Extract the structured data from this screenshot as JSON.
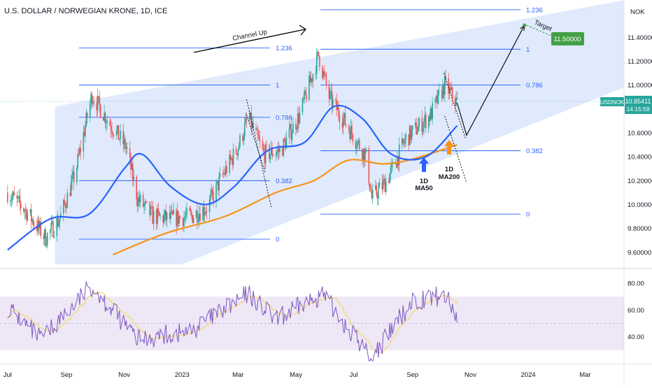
{
  "header": {
    "symbol_title": "U.S. DOLLAR / NORWEGIAN KRONE, 1D, ICE"
  },
  "price_axis": {
    "currency": "NOK",
    "ticks": [
      "11.40000",
      "11.20000",
      "11.00000",
      "10.80000",
      "10.60000",
      "10.40000",
      "10.20000",
      "10.00000",
      "9.80000",
      "9.60000"
    ],
    "last_symbol": "USDNOK",
    "last_price": "10.85411",
    "countdown": "14:15:59",
    "target_label": "11.50000"
  },
  "rsi_axis": {
    "ticks": [
      "80.00",
      "60.00",
      "40.00"
    ]
  },
  "time_axis": {
    "labels": [
      "Jul",
      "Sep",
      "Nov",
      "2023",
      "Mar",
      "May",
      "Jul",
      "Sep",
      "Nov",
      "2024",
      "Mar"
    ]
  },
  "annotations": {
    "channel_label": "Channel Up",
    "target_text": "Target",
    "ma50_line1": "1D",
    "ma50_line2": "MA50",
    "ma200_line1": "1D",
    "ma200_line2": "MA200"
  },
  "fib_sets": [
    {
      "levels": [
        {
          "label": "1.236",
          "value": 11.31
        },
        {
          "label": "1",
          "value": 11.0
        },
        {
          "label": "0.786",
          "value": 10.73
        },
        {
          "label": "0.382",
          "value": 10.2
        },
        {
          "label": "0",
          "value": 9.71
        }
      ]
    },
    {
      "levels": [
        {
          "label": "1.236",
          "value": 11.63
        },
        {
          "label": "1",
          "value": 11.3
        },
        {
          "label": "0.786",
          "value": 11.0
        },
        {
          "label": "0.382",
          "value": 10.45
        },
        {
          "label": "0",
          "value": 9.92
        }
      ]
    }
  ],
  "colors": {
    "up_candle": "#26a69a",
    "down_candle": "#ef5350",
    "ma50": "#2962ff",
    "ma200": "#f7931a",
    "rsi": "#7e57c2",
    "rsi_ma": "#f5d547",
    "channel": "#dbe6fb",
    "rsi_band": "#ede7f6",
    "target_badge": "#43a047",
    "price_badge": "#26a69a"
  },
  "chart_data": {
    "type": "candlestick",
    "title": "U.S. DOLLAR / NORWEGIAN KRONE, 1D, ICE",
    "x_range": [
      "2022-07-01",
      "2024-04-15"
    ],
    "y_unit": "NOK",
    "ylim": [
      9.5,
      11.7
    ],
    "rsi_ylim": [
      20,
      90
    ],
    "rsi_band": [
      30,
      70
    ],
    "price_path": [
      {
        "date": "2022-07-01",
        "value": 10.1
      },
      {
        "date": "2022-07-20",
        "value": 9.95
      },
      {
        "date": "2022-08-10",
        "value": 9.72
      },
      {
        "date": "2022-08-25",
        "value": 9.88
      },
      {
        "date": "2022-09-10",
        "value": 10.25
      },
      {
        "date": "2022-09-28",
        "value": 10.92
      },
      {
        "date": "2022-10-15",
        "value": 10.7
      },
      {
        "date": "2022-11-03",
        "value": 10.48
      },
      {
        "date": "2022-11-15",
        "value": 10.05
      },
      {
        "date": "2022-12-01",
        "value": 9.9
      },
      {
        "date": "2022-12-20",
        "value": 9.88
      },
      {
        "date": "2023-01-10",
        "value": 9.9
      },
      {
        "date": "2023-01-28",
        "value": 9.98
      },
      {
        "date": "2023-02-10",
        "value": 10.2
      },
      {
        "date": "2023-03-01",
        "value": 10.48
      },
      {
        "date": "2023-03-12",
        "value": 10.73
      },
      {
        "date": "2023-03-28",
        "value": 10.42
      },
      {
        "date": "2023-04-15",
        "value": 10.45
      },
      {
        "date": "2023-05-05",
        "value": 10.75
      },
      {
        "date": "2023-05-25",
        "value": 11.25
      },
      {
        "date": "2023-06-05",
        "value": 10.9
      },
      {
        "date": "2023-06-25",
        "value": 10.65
      },
      {
        "date": "2023-07-14",
        "value": 10.4
      },
      {
        "date": "2023-07-20",
        "value": 10.05
      },
      {
        "date": "2023-08-05",
        "value": 10.2
      },
      {
        "date": "2023-08-25",
        "value": 10.55
      },
      {
        "date": "2023-09-20",
        "value": 10.75
      },
      {
        "date": "2023-10-05",
        "value": 11.0
      },
      {
        "date": "2023-10-18",
        "value": 10.85
      }
    ],
    "ma50": [
      {
        "date": "2022-07-01",
        "value": 9.62
      },
      {
        "date": "2022-08-15",
        "value": 9.88
      },
      {
        "date": "2022-09-25",
        "value": 9.92
      },
      {
        "date": "2022-11-01",
        "value": 10.3
      },
      {
        "date": "2022-11-20",
        "value": 10.42
      },
      {
        "date": "2022-12-20",
        "value": 10.15
      },
      {
        "date": "2023-01-25",
        "value": 10.0
      },
      {
        "date": "2023-02-25",
        "value": 10.15
      },
      {
        "date": "2023-04-01",
        "value": 10.45
      },
      {
        "date": "2023-05-10",
        "value": 10.52
      },
      {
        "date": "2023-06-10",
        "value": 10.82
      },
      {
        "date": "2023-07-10",
        "value": 10.72
      },
      {
        "date": "2023-08-10",
        "value": 10.42
      },
      {
        "date": "2023-09-15",
        "value": 10.4
      },
      {
        "date": "2023-10-18",
        "value": 10.66
      }
    ],
    "ma200": [
      {
        "date": "2022-10-20",
        "value": 9.58
      },
      {
        "date": "2022-12-15",
        "value": 9.76
      },
      {
        "date": "2023-02-15",
        "value": 9.9
      },
      {
        "date": "2023-04-10",
        "value": 10.1
      },
      {
        "date": "2023-05-20",
        "value": 10.2
      },
      {
        "date": "2023-06-25",
        "value": 10.37
      },
      {
        "date": "2023-08-01",
        "value": 10.34
      },
      {
        "date": "2023-09-01",
        "value": 10.38
      },
      {
        "date": "2023-10-18",
        "value": 10.5
      }
    ],
    "rsi": [
      {
        "date": "2022-07-01",
        "value": 62
      },
      {
        "date": "2022-08-05",
        "value": 38
      },
      {
        "date": "2022-09-28",
        "value": 78
      },
      {
        "date": "2022-11-15",
        "value": 38
      },
      {
        "date": "2023-01-10",
        "value": 44
      },
      {
        "date": "2023-03-12",
        "value": 72
      },
      {
        "date": "2023-04-10",
        "value": 52
      },
      {
        "date": "2023-05-28",
        "value": 72
      },
      {
        "date": "2023-07-20",
        "value": 24
      },
      {
        "date": "2023-09-01",
        "value": 67
      },
      {
        "date": "2023-10-05",
        "value": 71
      },
      {
        "date": "2023-10-18",
        "value": 55
      }
    ],
    "forecast_path": [
      {
        "date": "2023-10-18",
        "value": 10.85
      },
      {
        "date": "2023-10-28",
        "value": 10.58
      },
      {
        "date": "2023-12-28",
        "value": 11.5
      }
    ],
    "target": {
      "date": "2023-12-28",
      "value": 11.5
    }
  }
}
